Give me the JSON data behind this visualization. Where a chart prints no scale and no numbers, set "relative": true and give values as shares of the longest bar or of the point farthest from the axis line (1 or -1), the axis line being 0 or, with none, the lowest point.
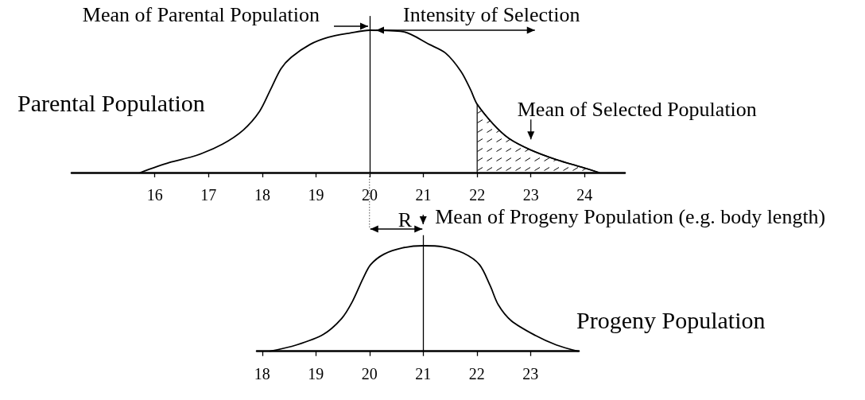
{
  "chart_data": [
    {
      "type": "line",
      "relative": true,
      "marker": "none",
      "grid": false,
      "tick_labels": "x",
      "xlim": [
        14.45,
        24.75
      ],
      "xticks": [
        16,
        17,
        18,
        19,
        20,
        21,
        22,
        23,
        24
      ],
      "series": [
        {
          "name": "Parental Population",
          "color": "#000000",
          "x": [
            15.73,
            16.27,
            16.77,
            17.26,
            17.65,
            17.95,
            18.15,
            18.35,
            18.54,
            18.89,
            19.23,
            19.63,
            20,
            20.62,
            21.11,
            21.41,
            21.7,
            21.88,
            22,
            22.3,
            22.59,
            22.99,
            23.48,
            23.93,
            24.27
          ],
          "values": [
            0,
            0.07,
            0.12,
            0.2,
            0.3,
            0.43,
            0.58,
            0.73,
            0.81,
            0.9,
            0.95,
            0.98,
            1,
            0.99,
            0.9,
            0.84,
            0.71,
            0.58,
            0.48,
            0.34,
            0.24,
            0.16,
            0.09,
            0.04,
            0
          ]
        },
        {
          "type": "area",
          "color": "#000000",
          "x": [
            22,
            22,
            22.3,
            22.59,
            22.99,
            23.48,
            23.93,
            24.27
          ],
          "values": [
            0,
            0.48,
            0.34,
            0.24,
            0.16,
            0.09,
            0.04,
            0
          ]
        }
      ],
      "ref_lines": [
        {
          "axis": "x",
          "value": 20,
          "label": "Mean of Parental Population",
          "color": "#000000"
        }
      ],
      "annotations": [
        {
          "text": "Mean of Selected Population",
          "x": 23,
          "y": 0.16
        },
        "Intensity of Selection"
      ]
    },
    {
      "type": "line",
      "relative": true,
      "marker": "none",
      "grid": false,
      "tick_labels": "x",
      "xlim": [
        17.9,
        23.9
      ],
      "xticks": [
        18,
        19,
        20,
        21,
        22,
        23
      ],
      "series": [
        {
          "name": "Progeny Population",
          "color": "#000000",
          "x": [
            18.15,
            18.64,
            19.14,
            19.48,
            19.68,
            19.88,
            20.02,
            20.27,
            20.62,
            21,
            21.36,
            21.75,
            22.05,
            22.25,
            22.4,
            22.64,
            23.09,
            23.48,
            23.88
          ],
          "values": [
            0,
            0.06,
            0.16,
            0.31,
            0.47,
            0.69,
            0.82,
            0.92,
            0.98,
            1,
            0.99,
            0.93,
            0.82,
            0.62,
            0.44,
            0.29,
            0.15,
            0.06,
            0
          ]
        }
      ],
      "ref_lines": [
        {
          "axis": "x",
          "value": 21,
          "label": "Mean of Progeny Population (e.g. body length)",
          "color": "#000000"
        }
      ],
      "annotations": [
        "R"
      ]
    }
  ]
}
